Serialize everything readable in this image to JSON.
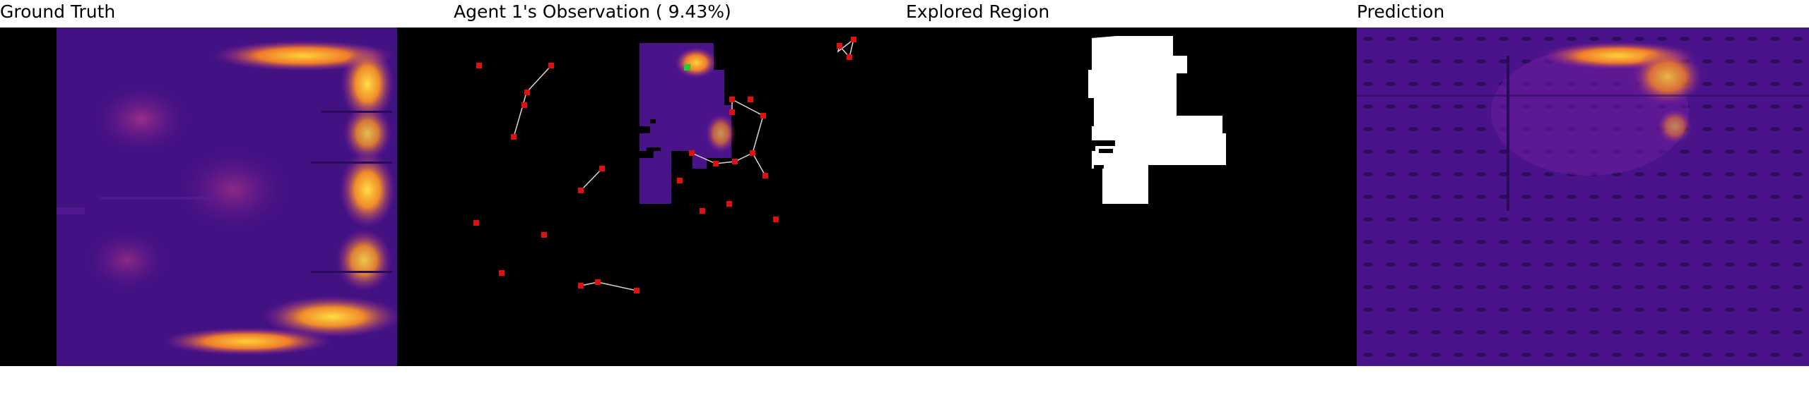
{
  "panels": {
    "ground_truth": {
      "title": "Ground Truth"
    },
    "observation": {
      "title": "Agent 1's Observation ( 9.43%)"
    },
    "explored": {
      "title": "Explored Region"
    },
    "prediction": {
      "title": "Prediction"
    }
  },
  "colors": {
    "background": "#000000",
    "heat_low": "#3a0f7a",
    "heat_mid": "#8b1fa0",
    "heat_high": "#f07c2a",
    "heat_peak": "#ffd23a",
    "agent_marker": "#e01010",
    "current_agent": "#22cc33",
    "trajectory": "#d8d8d8",
    "explored": "#ffffff"
  },
  "icons": {
    "agent": "red-square-marker",
    "current_agent": "green-square-marker"
  }
}
